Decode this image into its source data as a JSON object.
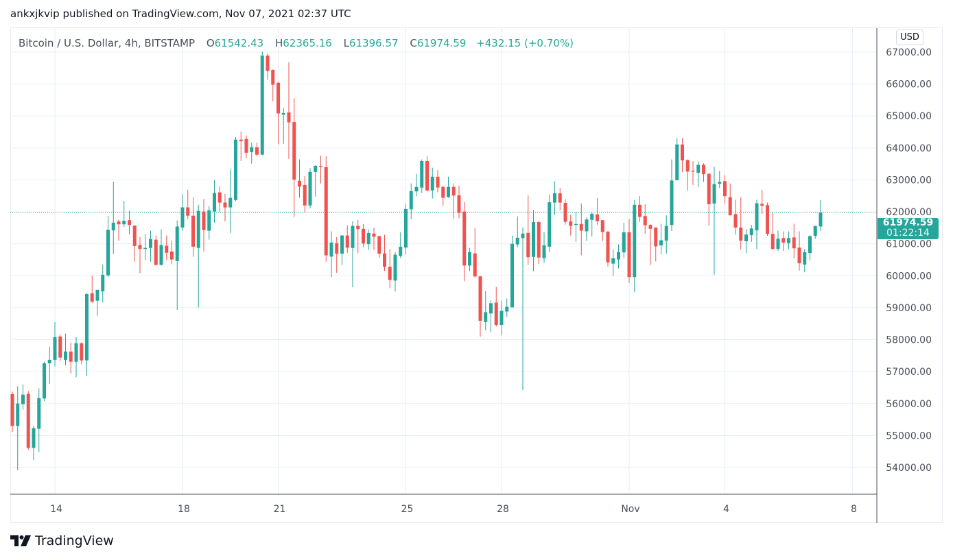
{
  "publisher_line": "ankxjkvip published on TradingView.com, Nov 07, 2021 02:37 UTC",
  "legend": {
    "symbol": "Bitcoin / U.S. Dollar, 4h, BITSTAMP",
    "o_label": "O",
    "o_value": "61542.43",
    "h_label": "H",
    "h_value": "62365.16",
    "l_label": "L",
    "l_value": "61396.57",
    "c_label": "C",
    "c_value": "61974.59",
    "change": "+432.15 (+0.70%)"
  },
  "currency_badge": "USD",
  "last_price": {
    "value": "61974.59",
    "countdown": "01:22:14"
  },
  "logo_text": "TradingView",
  "colors": {
    "up": "#26a69a",
    "down": "#ef5350",
    "grid": "#e6eef5",
    "axis": "#50535e"
  },
  "chart_data": {
    "type": "candlestick",
    "title": "Bitcoin / U.S. Dollar, 4h, BITSTAMP",
    "interval": "4h",
    "ylim": [
      53200,
      67600
    ],
    "grid": true,
    "y_ticks": [
      "54000.00",
      "55000.00",
      "56000.00",
      "57000.00",
      "58000.00",
      "59000.00",
      "60000.00",
      "61000.00",
      "62000.00",
      "63000.00",
      "64000.00",
      "65000.00",
      "66000.00",
      "67000.00"
    ],
    "x_ticks": [
      {
        "label": "14",
        "date": "2021-10-14 00:00"
      },
      {
        "label": "18",
        "date": "2021-10-18 00:00"
      },
      {
        "label": "21",
        "date": "2021-10-21 00:00"
      },
      {
        "label": "25",
        "date": "2021-10-25 00:00"
      },
      {
        "label": "28",
        "date": "2021-10-28 00:00"
      },
      {
        "label": "Nov",
        "date": "2021-11-01 00:00"
      },
      {
        "label": "4",
        "date": "2021-11-04 00:00"
      },
      {
        "label": "8",
        "date": "2021-11-08 00:00"
      }
    ],
    "columns": [
      "time",
      "open",
      "high",
      "low",
      "close"
    ],
    "candles": [
      [
        "2021-10-12 16:00",
        56300,
        56370,
        55110,
        55300
      ],
      [
        "2021-10-12 20:00",
        55300,
        56540,
        53910,
        56000
      ],
      [
        "2021-10-13 00:00",
        55980,
        56600,
        55810,
        56280
      ],
      [
        "2021-10-13 04:00",
        56300,
        56390,
        54550,
        54610
      ],
      [
        "2021-10-13 08:00",
        54610,
        55300,
        54230,
        55230
      ],
      [
        "2021-10-13 12:00",
        55210,
        56480,
        54480,
        56170
      ],
      [
        "2021-10-13 16:00",
        56160,
        57310,
        56070,
        57260
      ],
      [
        "2021-10-13 20:00",
        57260,
        57780,
        56620,
        57370
      ],
      [
        "2021-10-14 00:00",
        57370,
        58550,
        57160,
        58080
      ],
      [
        "2021-10-14 04:00",
        58100,
        58170,
        57340,
        57440
      ],
      [
        "2021-10-14 08:00",
        57370,
        58190,
        57200,
        57630
      ],
      [
        "2021-10-14 12:00",
        57630,
        57910,
        56940,
        57310
      ],
      [
        "2021-10-14 16:00",
        57310,
        58080,
        56820,
        57890
      ],
      [
        "2021-10-14 20:00",
        57890,
        57910,
        57230,
        57350
      ],
      [
        "2021-10-15 00:00",
        57350,
        59450,
        56860,
        59430
      ],
      [
        "2021-10-15 04:00",
        59450,
        60010,
        59150,
        59190
      ],
      [
        "2021-10-15 08:00",
        59220,
        59560,
        58750,
        59560
      ],
      [
        "2021-10-15 12:00",
        59510,
        60350,
        59160,
        60030
      ],
      [
        "2021-10-15 16:00",
        60010,
        61870,
        59970,
        61440
      ],
      [
        "2021-10-15 20:00",
        61420,
        62940,
        60680,
        61660
      ],
      [
        "2021-10-16 00:00",
        61700,
        61760,
        61100,
        61610
      ],
      [
        "2021-10-16 04:00",
        61610,
        62340,
        61530,
        61720
      ],
      [
        "2021-10-16 08:00",
        61740,
        62040,
        61290,
        61590
      ],
      [
        "2021-10-16 12:00",
        61570,
        61570,
        60440,
        60930
      ],
      [
        "2021-10-16 16:00",
        60960,
        61210,
        60080,
        60840
      ],
      [
        "2021-10-16 20:00",
        60840,
        61300,
        60490,
        60870
      ],
      [
        "2021-10-17 00:00",
        60870,
        61410,
        60440,
        61150
      ],
      [
        "2021-10-17 04:00",
        61130,
        61260,
        60320,
        60340
      ],
      [
        "2021-10-17 08:00",
        60340,
        61450,
        60320,
        60960
      ],
      [
        "2021-10-17 12:00",
        60940,
        61260,
        60490,
        60720
      ],
      [
        "2021-10-17 16:00",
        60760,
        61090,
        60360,
        60510
      ],
      [
        "2021-10-17 20:00",
        60460,
        61730,
        58930,
        61540
      ],
      [
        "2021-10-18 00:00",
        61510,
        62560,
        61410,
        62140
      ],
      [
        "2021-10-18 04:00",
        62140,
        62690,
        61770,
        61880
      ],
      [
        "2021-10-18 08:00",
        61880,
        62460,
        60590,
        60910
      ],
      [
        "2021-10-18 12:00",
        60870,
        62220,
        59010,
        62030
      ],
      [
        "2021-10-18 16:00",
        62010,
        62400,
        60760,
        61430
      ],
      [
        "2021-10-18 20:00",
        61410,
        62180,
        61130,
        62050
      ],
      [
        "2021-10-19 00:00",
        62010,
        62990,
        61660,
        62590
      ],
      [
        "2021-10-19 04:00",
        62610,
        62800,
        61990,
        62290
      ],
      [
        "2021-10-19 08:00",
        62290,
        62560,
        61700,
        62140
      ],
      [
        "2021-10-19 12:00",
        62140,
        63340,
        61340,
        62440
      ],
      [
        "2021-10-19 16:00",
        62370,
        64340,
        62330,
        64260
      ],
      [
        "2021-10-19 20:00",
        64260,
        64510,
        63590,
        64210
      ],
      [
        "2021-10-20 00:00",
        64280,
        64390,
        63680,
        63850
      ],
      [
        "2021-10-20 04:00",
        63870,
        64170,
        63510,
        64020
      ],
      [
        "2021-10-20 08:00",
        64020,
        64170,
        63740,
        63790
      ],
      [
        "2021-10-20 12:00",
        63790,
        67020,
        63770,
        66890
      ],
      [
        "2021-10-20 16:00",
        66890,
        66960,
        66130,
        66410
      ],
      [
        "2021-10-20 20:00",
        66440,
        66460,
        65460,
        65980
      ],
      [
        "2021-10-21 00:00",
        66040,
        66060,
        64110,
        65080
      ],
      [
        "2021-10-21 04:00",
        65040,
        65260,
        64130,
        65090
      ],
      [
        "2021-10-21 08:00",
        65110,
        66680,
        63660,
        64800
      ],
      [
        "2021-10-21 12:00",
        64810,
        65560,
        61840,
        63010
      ],
      [
        "2021-10-21 16:00",
        62970,
        63640,
        62440,
        62790
      ],
      [
        "2021-10-21 20:00",
        62840,
        63120,
        61990,
        62200
      ],
      [
        "2021-10-22 00:00",
        62200,
        63360,
        62110,
        63250
      ],
      [
        "2021-10-22 04:00",
        63250,
        63460,
        62480,
        63440
      ],
      [
        "2021-10-22 08:00",
        63440,
        63760,
        62890,
        63410
      ],
      [
        "2021-10-22 12:00",
        63400,
        63740,
        60440,
        60640
      ],
      [
        "2021-10-22 16:00",
        60600,
        61390,
        59960,
        61040
      ],
      [
        "2021-10-22 20:00",
        61020,
        61210,
        60090,
        60690
      ],
      [
        "2021-10-23 00:00",
        60690,
        61280,
        60340,
        61260
      ],
      [
        "2021-10-23 04:00",
        61260,
        61580,
        60710,
        60880
      ],
      [
        "2021-10-23 08:00",
        60870,
        61710,
        59640,
        61560
      ],
      [
        "2021-10-23 12:00",
        61560,
        61750,
        60710,
        61460
      ],
      [
        "2021-10-23 16:00",
        61470,
        61620,
        60900,
        61010
      ],
      [
        "2021-10-23 20:00",
        60990,
        61450,
        60810,
        61340
      ],
      [
        "2021-10-24 00:00",
        61320,
        61510,
        60810,
        61220
      ],
      [
        "2021-10-24 04:00",
        61240,
        61260,
        60560,
        60690
      ],
      [
        "2021-10-24 08:00",
        60700,
        61280,
        60150,
        60280
      ],
      [
        "2021-10-24 12:00",
        60280,
        60830,
        59610,
        59870
      ],
      [
        "2021-10-24 16:00",
        59850,
        60740,
        59510,
        60660
      ],
      [
        "2021-10-24 20:00",
        60620,
        61360,
        60560,
        60910
      ],
      [
        "2021-10-25 00:00",
        60880,
        62240,
        60660,
        62090
      ],
      [
        "2021-10-25 04:00",
        62080,
        62890,
        61770,
        62650
      ],
      [
        "2021-10-25 08:00",
        62640,
        63190,
        62490,
        62780
      ],
      [
        "2021-10-25 12:00",
        62760,
        63640,
        62590,
        63590
      ],
      [
        "2021-10-25 16:00",
        63590,
        63740,
        62640,
        62670
      ],
      [
        "2021-10-25 20:00",
        62670,
        63380,
        62420,
        63100
      ],
      [
        "2021-10-26 00:00",
        63100,
        63310,
        62610,
        62760
      ],
      [
        "2021-10-26 04:00",
        62780,
        62820,
        62190,
        62440
      ],
      [
        "2021-10-26 08:00",
        62460,
        63100,
        62440,
        62780
      ],
      [
        "2021-10-26 12:00",
        62780,
        62890,
        61780,
        62510
      ],
      [
        "2021-10-26 16:00",
        62520,
        62820,
        61800,
        61970
      ],
      [
        "2021-10-26 20:00",
        62010,
        62310,
        59830,
        60320
      ],
      [
        "2021-10-27 00:00",
        60320,
        60870,
        60150,
        60740
      ],
      [
        "2021-10-27 04:00",
        60700,
        61490,
        59940,
        59980
      ],
      [
        "2021-10-27 08:00",
        59980,
        60000,
        58090,
        58590
      ],
      [
        "2021-10-27 12:00",
        58550,
        59520,
        58290,
        58860
      ],
      [
        "2021-10-27 16:00",
        58820,
        59220,
        58230,
        59140
      ],
      [
        "2021-10-27 20:00",
        59160,
        59650,
        58410,
        58460
      ],
      [
        "2021-10-28 00:00",
        58460,
        59220,
        58140,
        58900
      ],
      [
        "2021-10-28 04:00",
        58880,
        59290,
        58710,
        59030
      ],
      [
        "2021-10-28 08:00",
        59010,
        61260,
        59010,
        61000
      ],
      [
        "2021-10-28 12:00",
        60980,
        61860,
        60890,
        61190
      ],
      [
        "2021-10-28 16:00",
        61180,
        61510,
        56420,
        61320
      ],
      [
        "2021-10-28 20:00",
        61340,
        62520,
        60340,
        60580
      ],
      [
        "2021-10-29 00:00",
        60590,
        62060,
        60140,
        61680
      ],
      [
        "2021-10-29 04:00",
        61680,
        61720,
        60360,
        60570
      ],
      [
        "2021-10-29 08:00",
        60550,
        61360,
        60400,
        60950
      ],
      [
        "2021-10-29 12:00",
        60910,
        62540,
        60740,
        62300
      ],
      [
        "2021-10-29 16:00",
        62290,
        62960,
        61900,
        62580
      ],
      [
        "2021-10-29 20:00",
        62580,
        62750,
        62050,
        62290
      ],
      [
        "2021-10-30 00:00",
        62280,
        62390,
        61600,
        61690
      ],
      [
        "2021-10-30 04:00",
        61700,
        61910,
        61260,
        61560
      ],
      [
        "2021-10-30 08:00",
        61590,
        62000,
        61060,
        61620
      ],
      [
        "2021-10-30 12:00",
        61620,
        62260,
        60640,
        61410
      ],
      [
        "2021-10-30 16:00",
        61390,
        61830,
        61090,
        61760
      ],
      [
        "2021-10-30 20:00",
        61750,
        61980,
        61220,
        61940
      ],
      [
        "2021-10-31 00:00",
        61920,
        62430,
        61600,
        61710
      ],
      [
        "2021-10-31 04:00",
        61740,
        61740,
        61090,
        61370
      ],
      [
        "2021-10-31 08:00",
        61380,
        61400,
        60290,
        60420
      ],
      [
        "2021-10-31 12:00",
        60380,
        60830,
        60000,
        60550
      ],
      [
        "2021-10-31 16:00",
        60510,
        60980,
        60230,
        60740
      ],
      [
        "2021-10-31 20:00",
        60730,
        61660,
        60550,
        61360
      ],
      [
        "2021-11-01 00:00",
        61360,
        61770,
        59770,
        59960
      ],
      [
        "2021-11-01 04:00",
        59960,
        62370,
        59490,
        62220
      ],
      [
        "2021-11-01 08:00",
        62220,
        62490,
        61690,
        61840
      ],
      [
        "2021-11-01 12:00",
        61870,
        62240,
        61320,
        61580
      ],
      [
        "2021-11-01 16:00",
        61590,
        61620,
        60340,
        61470
      ],
      [
        "2021-11-01 20:00",
        61510,
        61510,
        60450,
        60920
      ],
      [
        "2021-11-02 00:00",
        60950,
        61630,
        60670,
        61110
      ],
      [
        "2021-11-02 04:00",
        61100,
        61890,
        60690,
        61560
      ],
      [
        "2021-11-02 08:00",
        61590,
        63640,
        61400,
        62980
      ],
      [
        "2021-11-02 12:00",
        62990,
        64310,
        62990,
        64110
      ],
      [
        "2021-11-02 16:00",
        64110,
        64310,
        63240,
        63610
      ],
      [
        "2021-11-02 20:00",
        63620,
        63640,
        62660,
        63260
      ],
      [
        "2021-11-03 00:00",
        63290,
        63580,
        62840,
        63260
      ],
      [
        "2021-11-03 04:00",
        63220,
        63580,
        62770,
        63470
      ],
      [
        "2021-11-03 08:00",
        63470,
        63520,
        62940,
        63180
      ],
      [
        "2021-11-03 12:00",
        63190,
        63210,
        61570,
        62240
      ],
      [
        "2021-11-03 16:00",
        62260,
        63410,
        60030,
        62870
      ],
      [
        "2021-11-03 20:00",
        62880,
        63280,
        62750,
        62940
      ],
      [
        "2021-11-04 00:00",
        62960,
        63150,
        62260,
        62490
      ],
      [
        "2021-11-04 04:00",
        62460,
        62890,
        61890,
        61890
      ],
      [
        "2021-11-04 08:00",
        61930,
        62380,
        61290,
        61510
      ],
      [
        "2021-11-04 12:00",
        61510,
        62460,
        60820,
        61100
      ],
      [
        "2021-11-04 16:00",
        61080,
        61460,
        60710,
        61290
      ],
      [
        "2021-11-04 20:00",
        61270,
        61590,
        61060,
        61480
      ],
      [
        "2021-11-05 00:00",
        61420,
        62380,
        60840,
        62270
      ],
      [
        "2021-11-05 04:00",
        62250,
        62690,
        61940,
        62190
      ],
      [
        "2021-11-05 08:00",
        62210,
        62290,
        61250,
        61310
      ],
      [
        "2021-11-05 12:00",
        61310,
        61980,
        60800,
        60840
      ],
      [
        "2021-11-05 16:00",
        60840,
        61410,
        60780,
        61160
      ],
      [
        "2021-11-05 20:00",
        61180,
        61390,
        60780,
        61040
      ],
      [
        "2021-11-06 00:00",
        61020,
        61390,
        60840,
        61180
      ],
      [
        "2021-11-06 04:00",
        61200,
        61630,
        60540,
        60860
      ],
      [
        "2021-11-06 08:00",
        60880,
        61390,
        60160,
        60390
      ],
      [
        "2021-11-06 12:00",
        60350,
        60840,
        60110,
        60740
      ],
      [
        "2021-11-06 16:00",
        60710,
        61270,
        60480,
        61240
      ],
      [
        "2021-11-06 20:00",
        61250,
        61560,
        61160,
        61560
      ],
      [
        "2021-11-07 00:00",
        61542.43,
        62365.16,
        61396.57,
        61974.59
      ]
    ],
    "last_price_line": 61974.59
  }
}
